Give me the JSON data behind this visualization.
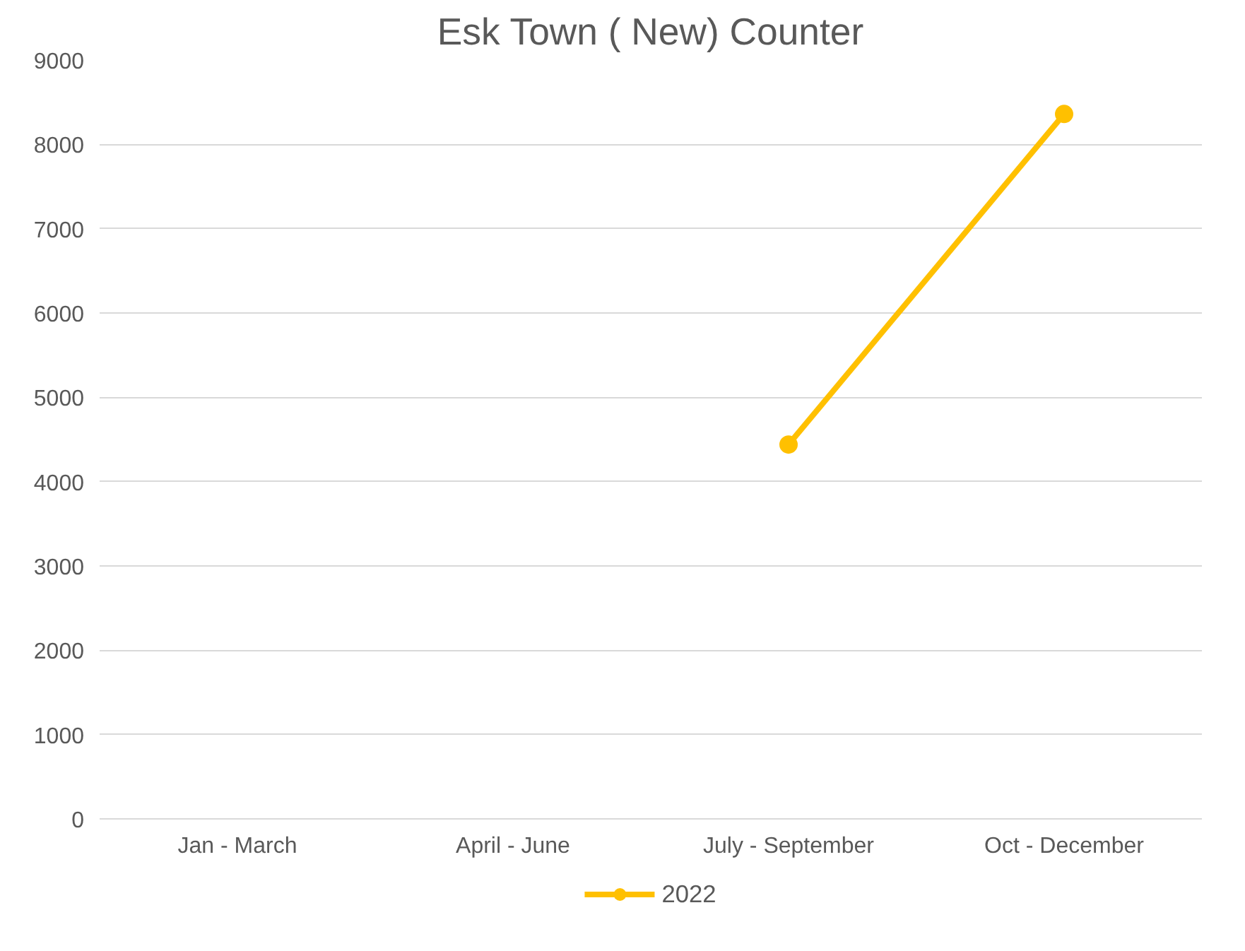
{
  "chart_data": {
    "type": "line",
    "title": "Esk Town ( New) Counter",
    "categories": [
      "Jan - March",
      "April - June",
      "July - September",
      "Oct - December"
    ],
    "series": [
      {
        "name": "2022",
        "color": "#ffc000",
        "values": [
          null,
          null,
          4440,
          8360
        ]
      }
    ],
    "ylim": [
      0,
      9000
    ],
    "yticks": [
      0,
      1000,
      2000,
      3000,
      4000,
      5000,
      6000,
      7000,
      8000,
      9000
    ],
    "grid": "y",
    "legend": "bottom",
    "marker": "circle",
    "line_style": "solid"
  }
}
